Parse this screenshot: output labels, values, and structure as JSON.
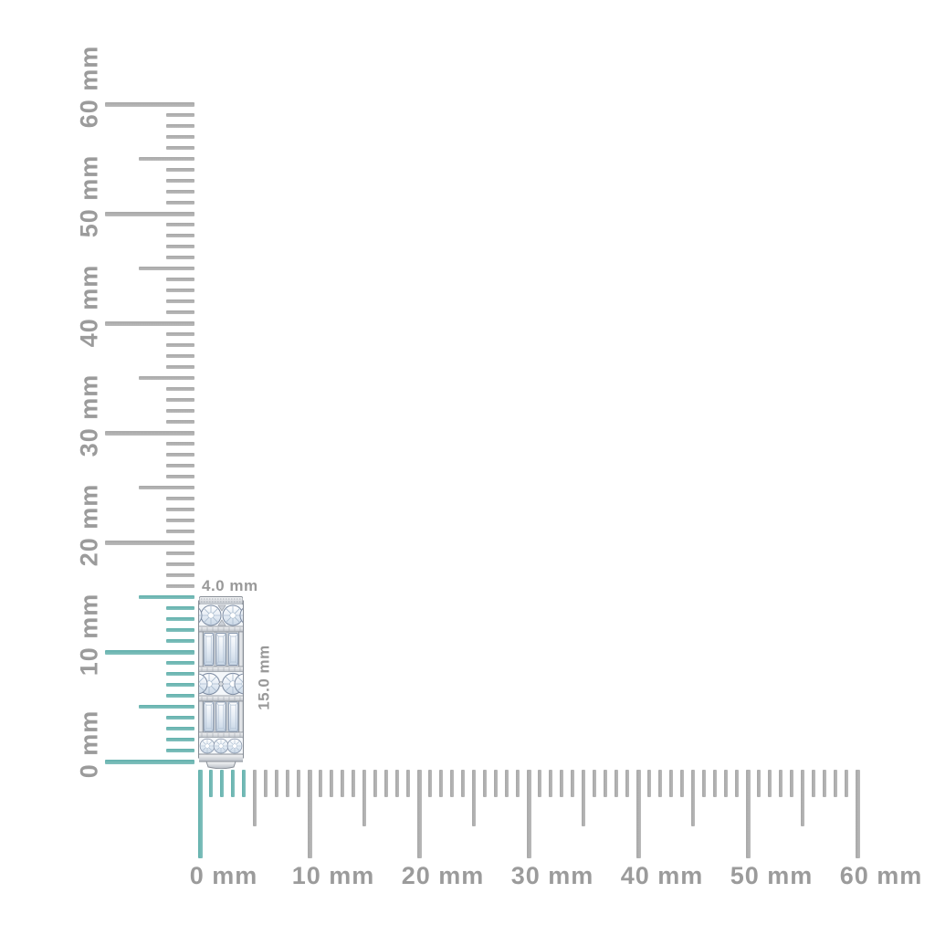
{
  "colors": {
    "background": "#ffffff",
    "tick_gray": "#a8a8a8",
    "tick_teal": "#63b1ad",
    "label_gray": "#9b9b9b",
    "dim_label_gray": "#999999"
  },
  "vertical_ruler": {
    "unit": "mm",
    "min_mm": 0,
    "max_mm": 60,
    "major_step_mm": 10,
    "half_step_mm": 5,
    "labels": [
      "0 mm",
      "10 mm",
      "20 mm",
      "30 mm",
      "40 mm",
      "50 mm",
      "60 mm"
    ],
    "highlight_from_mm": 0,
    "highlight_to_mm": 15
  },
  "horizontal_ruler": {
    "unit": "mm",
    "min_mm": 0,
    "max_mm": 60,
    "major_step_mm": 10,
    "half_step_mm": 5,
    "labels": [
      "0 mm",
      "10 mm",
      "20 mm",
      "30 mm",
      "40 mm",
      "50 mm",
      "60 mm"
    ],
    "highlight_from_mm": 0,
    "highlight_to_mm": 4
  },
  "product": {
    "width_label": "4.0 mm",
    "height_label": "15.0 mm"
  }
}
